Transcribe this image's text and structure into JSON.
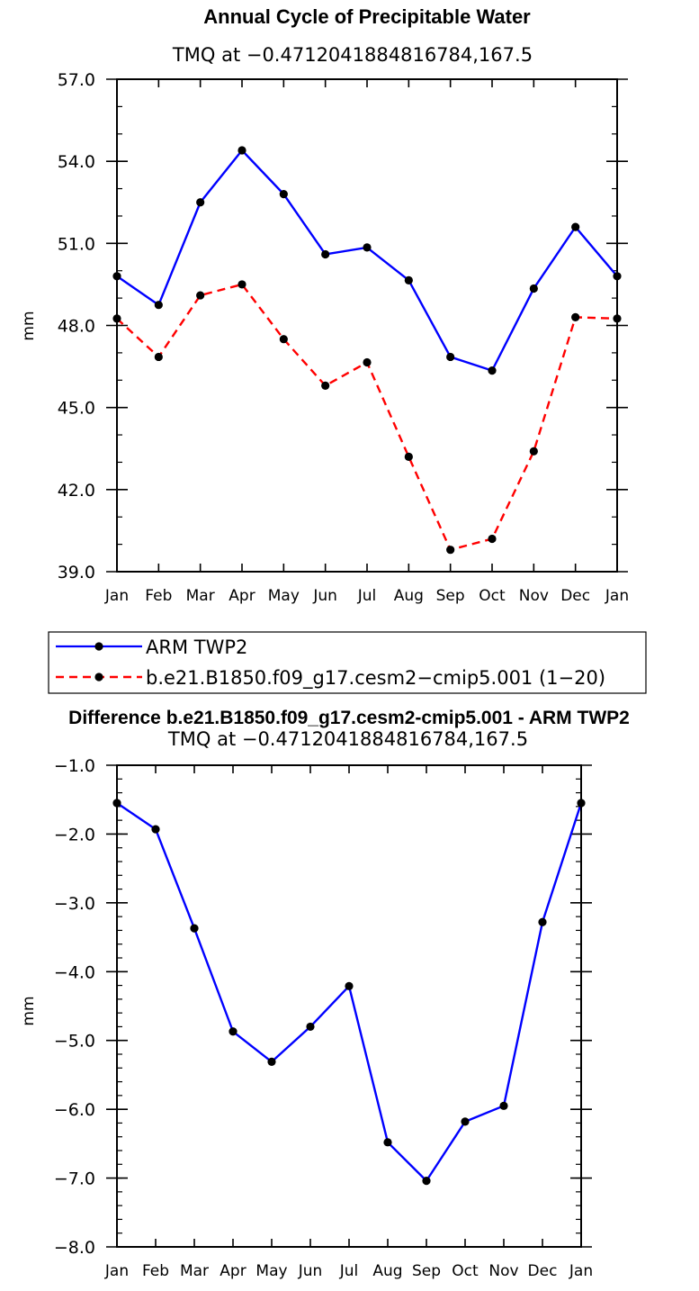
{
  "chart_data": [
    {
      "type": "line",
      "title": "Annual Cycle of Precipitable Water",
      "subtitle": "TMQ at −0.4712041884816784,167.5",
      "xlabel": "",
      "ylabel": "mm",
      "categories": [
        "Jan",
        "Feb",
        "Mar",
        "Apr",
        "May",
        "Jun",
        "Jul",
        "Aug",
        "Sep",
        "Oct",
        "Nov",
        "Dec",
        "Jan"
      ],
      "ylim": [
        39.0,
        57.0
      ],
      "yticks": [
        39.0,
        42.0,
        45.0,
        48.0,
        51.0,
        54.0,
        57.0
      ],
      "ytick_labels": [
        "39.0",
        "42.0",
        "45.0",
        "48.0",
        "51.0",
        "54.0",
        "57.0"
      ],
      "grid": false,
      "legend": "below",
      "series": [
        {
          "name": "ARM TWP2",
          "color": "#0000ff",
          "dash": "solid",
          "values": [
            49.8,
            48.75,
            52.5,
            54.4,
            52.8,
            50.6,
            50.85,
            49.65,
            46.85,
            46.35,
            49.35,
            51.6,
            49.8
          ]
        },
        {
          "name": "b.e21.B1850.f09_g17.cesm2−cmip5.001 (1−20)",
          "color": "#ff0000",
          "dash": "dashed",
          "values": [
            48.25,
            46.85,
            49.1,
            49.5,
            47.5,
            45.8,
            46.65,
            43.2,
            39.8,
            40.2,
            43.4,
            48.3,
            48.25
          ]
        }
      ]
    },
    {
      "type": "line",
      "title": "Difference b.e21.B1850.f09_g17.cesm2-cmip5.001 - ARM TWP2",
      "subtitle": "TMQ at −0.4712041884816784,167.5",
      "xlabel": "",
      "ylabel": "mm",
      "categories": [
        "Jan",
        "Feb",
        "Mar",
        "Apr",
        "May",
        "Jun",
        "Jul",
        "Aug",
        "Sep",
        "Oct",
        "Nov",
        "Dec",
        "Jan"
      ],
      "ylim": [
        -8.0,
        -1.0
      ],
      "yticks": [
        -8.0,
        -7.0,
        -6.0,
        -5.0,
        -4.0,
        -3.0,
        -2.0,
        -1.0
      ],
      "ytick_labels": [
        "−8.0",
        "−7.0",
        "−6.0",
        "−5.0",
        "−4.0",
        "−3.0",
        "−2.0",
        "−1.0"
      ],
      "grid": false,
      "series": [
        {
          "color": "#0000ff",
          "dash": "solid",
          "values": [
            -1.55,
            -1.93,
            -3.37,
            -4.87,
            -5.31,
            -4.8,
            -4.21,
            -6.48,
            -7.04,
            -6.18,
            -5.95,
            -3.28,
            -1.55
          ]
        }
      ]
    }
  ]
}
